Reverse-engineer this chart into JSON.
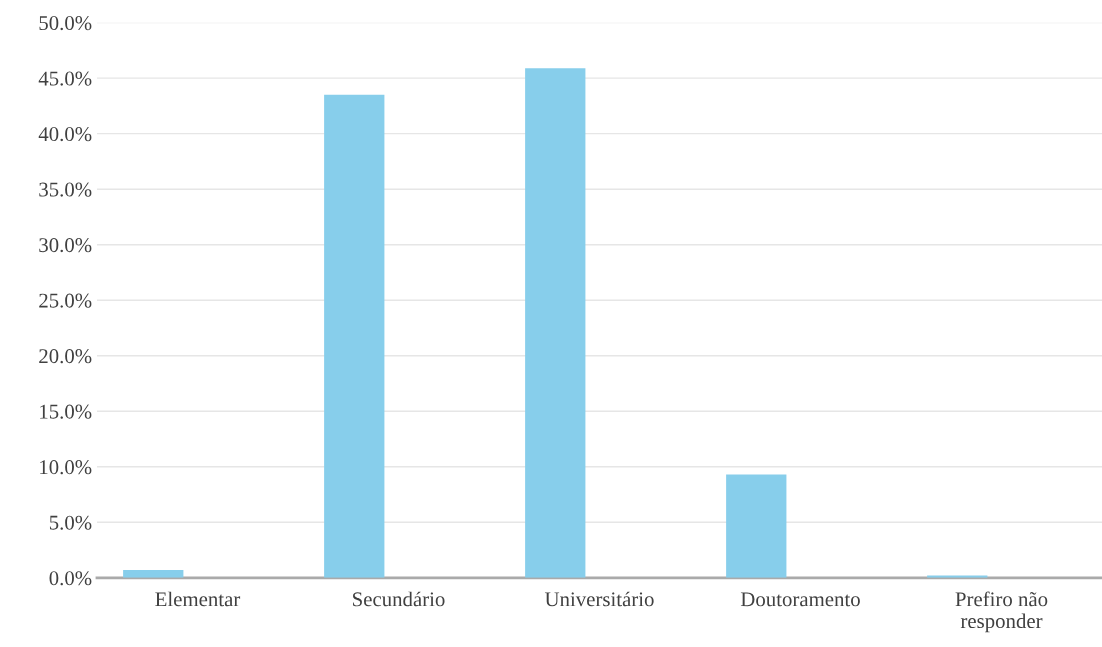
{
  "chart_data": {
    "type": "bar",
    "categories": [
      "Elementar",
      "Secundário",
      "Universitário",
      "Doutoramento",
      "Prefiro não\nresponder"
    ],
    "values": [
      0.7,
      43.5,
      45.9,
      9.3,
      0.2
    ],
    "color": "#87ceeb",
    "ylim": [
      0,
      50
    ],
    "yticks": [
      {
        "value": 0,
        "label": "0.0%"
      },
      {
        "value": 5,
        "label": "5.0%"
      },
      {
        "value": 10,
        "label": "10.0%"
      },
      {
        "value": 15,
        "label": "15.0%"
      },
      {
        "value": 20,
        "label": "20.0%"
      },
      {
        "value": 25,
        "label": "25.0%"
      },
      {
        "value": 30,
        "label": "30.0%"
      },
      {
        "value": 35,
        "label": "35.0%"
      },
      {
        "value": 40,
        "label": "40.0%"
      },
      {
        "value": 45,
        "label": "45.0%"
      },
      {
        "value": 50,
        "label": "50.0%"
      }
    ],
    "grid": "y"
  }
}
